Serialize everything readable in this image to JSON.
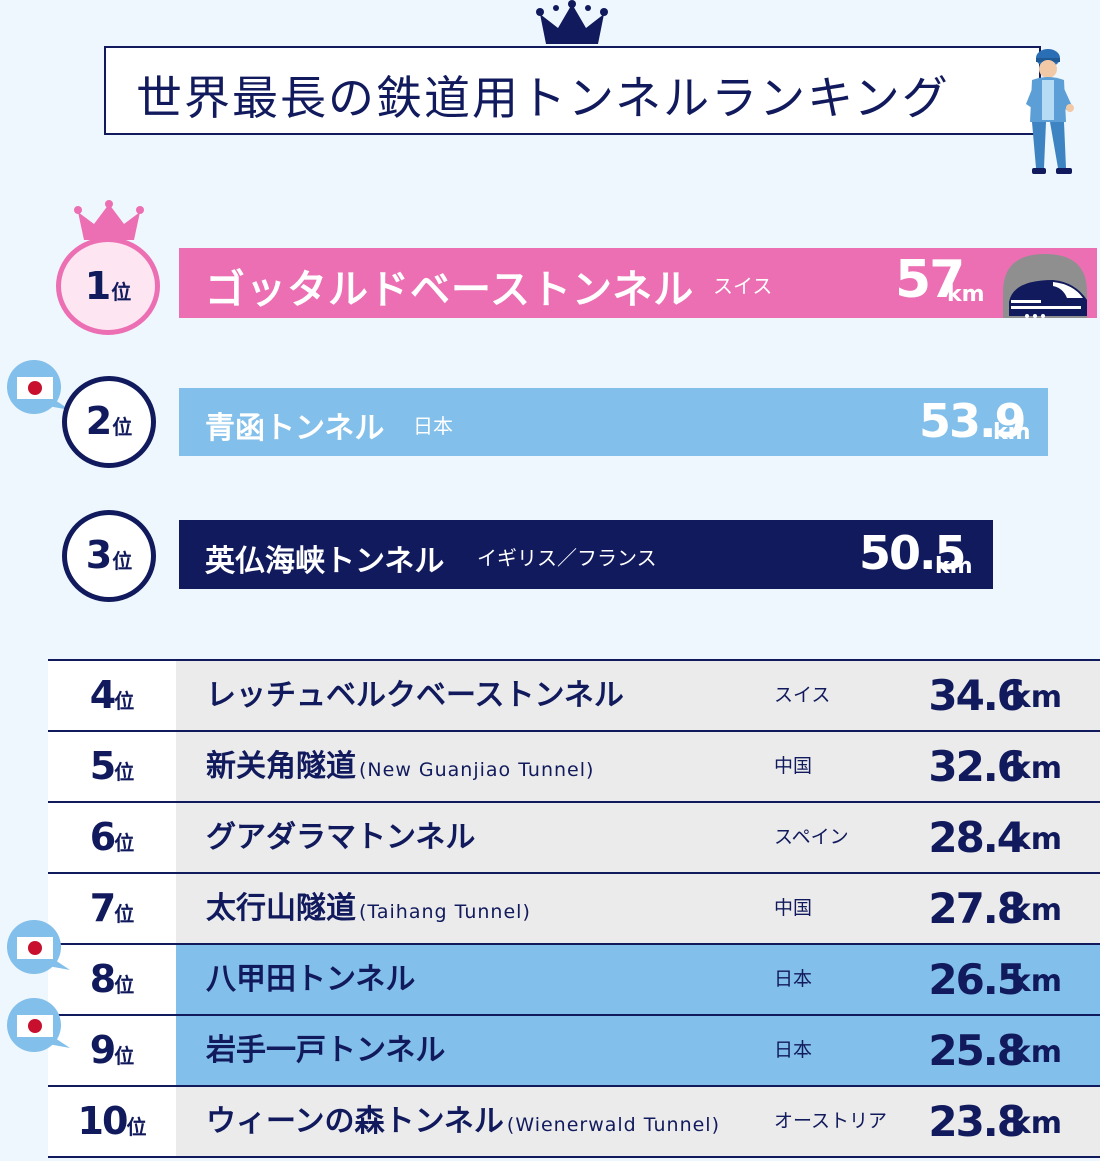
{
  "colors": {
    "navy": "#111a5c",
    "pink": "#ec6fb3",
    "pink_light": "#fde6f1",
    "sky": "#82bfea",
    "gray_row": "#ebebeb",
    "background": "#eef7fd"
  },
  "title": "世界最長の鉄道用トンネルランキング",
  "rank_unit": "位",
  "chart_data": {
    "type": "bar",
    "title": "世界最長の鉄道用トンネルランキング",
    "unit": "km",
    "ranking": [
      {
        "rank": "1",
        "name": "ゴッタルドベーストンネル",
        "name_en": "",
        "country": "スイス",
        "value": "57",
        "km": 57
      },
      {
        "rank": "2",
        "name": "青函トンネル",
        "name_en": "",
        "country": "日本",
        "value": "53.9",
        "km": 53.9
      },
      {
        "rank": "3",
        "name": "英仏海峡トンネル",
        "name_en": "",
        "country": "イギリス／フランス",
        "value": "50.5",
        "km": 50.5
      },
      {
        "rank": "4",
        "name": "レッチュベルクベーストンネル",
        "name_en": "",
        "country": "スイス",
        "value": "34.6",
        "km": 34.6
      },
      {
        "rank": "5",
        "name": "新关角隧道",
        "name_en": "(New Guanjiao Tunnel)",
        "country": "中国",
        "value": "32.6",
        "km": 32.6
      },
      {
        "rank": "6",
        "name": "グアダラマトンネル",
        "name_en": "",
        "country": "スペイン",
        "value": "28.4",
        "km": 28.4
      },
      {
        "rank": "7",
        "name": "太行山隧道",
        "name_en": "(Taihang Tunnel)",
        "country": "中国",
        "value": "27.8",
        "km": 27.8
      },
      {
        "rank": "8",
        "name": "八甲田トンネル",
        "name_en": "",
        "country": "日本",
        "value": "26.5",
        "km": 26.5
      },
      {
        "rank": "9",
        "name": "岩手一戸トンネル",
        "name_en": "",
        "country": "日本",
        "value": "25.8",
        "km": 25.8
      },
      {
        "rank": "10",
        "name": "ウィーンの森トンネル",
        "name_en": "(Wienerwald Tunnel)",
        "country": "オーストリア",
        "value": "23.8",
        "km": 23.8
      }
    ]
  }
}
